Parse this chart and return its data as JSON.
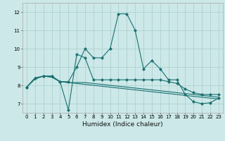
{
  "bg_color": "#cce8e8",
  "grid_color": "#aacccc",
  "line_color": "#1a7070",
  "xlabel": "Humidex (Indice chaleur)",
  "ylim": [
    6.5,
    12.5
  ],
  "xlim": [
    -0.5,
    23.5
  ],
  "yticks": [
    7,
    8,
    9,
    10,
    11,
    12
  ],
  "xtick_labels": [
    "0",
    "1",
    "2",
    "3",
    "4",
    "5",
    "6",
    "7",
    "8",
    "9",
    "10",
    "11",
    "12",
    "13",
    "14",
    "15",
    "16",
    "17",
    "18",
    "19",
    "20",
    "21",
    "22",
    "23"
  ],
  "series": [
    {
      "x": [
        0,
        1,
        2,
        3,
        4,
        5,
        6,
        7,
        8,
        9,
        10,
        11,
        12,
        13,
        14,
        15,
        16,
        17,
        18,
        19,
        20,
        21,
        22,
        23
      ],
      "y": [
        7.9,
        8.4,
        8.5,
        8.5,
        8.2,
        8.2,
        9.0,
        10.0,
        9.5,
        9.5,
        10.0,
        11.9,
        11.9,
        11.0,
        8.9,
        9.35,
        8.9,
        8.3,
        8.3,
        7.5,
        7.1,
        7.0,
        7.05,
        7.3
      ],
      "marker": true
    },
    {
      "x": [
        0,
        1,
        2,
        3,
        4,
        5,
        6,
        7,
        8,
        9,
        10,
        11,
        12,
        13,
        14,
        15,
        16,
        17,
        18,
        19,
        20,
        21,
        22,
        23
      ],
      "y": [
        7.9,
        8.4,
        8.5,
        8.5,
        8.2,
        6.65,
        9.7,
        9.5,
        8.3,
        8.3,
        8.3,
        8.3,
        8.3,
        8.3,
        8.3,
        8.3,
        8.3,
        8.2,
        8.1,
        7.8,
        7.6,
        7.5,
        7.5,
        7.5
      ],
      "marker": true
    },
    {
      "x": [
        0,
        1,
        2,
        3,
        4,
        5,
        6,
        7,
        8,
        9,
        10,
        11,
        12,
        13,
        14,
        15,
        16,
        17,
        18,
        19,
        20,
        21,
        22,
        23
      ],
      "y": [
        7.9,
        8.35,
        8.5,
        8.45,
        8.2,
        8.15,
        8.15,
        8.15,
        8.1,
        8.05,
        8.0,
        7.95,
        7.9,
        7.85,
        7.8,
        7.75,
        7.7,
        7.65,
        7.6,
        7.55,
        7.5,
        7.45,
        7.4,
        7.35
      ],
      "marker": false
    },
    {
      "x": [
        0,
        1,
        2,
        3,
        4,
        5,
        6,
        7,
        8,
        9,
        10,
        11,
        12,
        13,
        14,
        15,
        16,
        17,
        18,
        19,
        20,
        21,
        22,
        23
      ],
      "y": [
        7.9,
        8.35,
        8.5,
        8.45,
        8.2,
        8.15,
        8.1,
        8.05,
        8.0,
        7.95,
        7.9,
        7.85,
        7.8,
        7.75,
        7.7,
        7.65,
        7.6,
        7.55,
        7.5,
        7.45,
        7.4,
        7.35,
        7.3,
        7.25
      ],
      "marker": false
    }
  ],
  "marker_size": 2.2,
  "linewidth": 0.8,
  "tick_fontsize": 5.0,
  "xlabel_fontsize": 6.5
}
